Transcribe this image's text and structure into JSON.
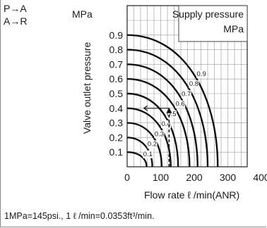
{
  "ports": [
    "P→A",
    "A→R"
  ],
  "footer_note": "1MPa=145psi., 1 ℓ /min=0.0353ft³/min.",
  "chart_data": {
    "type": "line",
    "xlabel": "Flow rate ℓ /min(ANR)",
    "ylabel": "Valve outlet pressure",
    "y_unit": "MPa",
    "legend_title": "Supply pressure",
    "legend_unit": "MPa",
    "xlim": [
      0,
      400
    ],
    "ylim": [
      0,
      1.0
    ],
    "x_ticks": [
      0,
      100,
      200,
      300,
      400
    ],
    "y_ticks": [
      0.1,
      0.2,
      0.3,
      0.4,
      0.5,
      0.6,
      0.7,
      0.8,
      0.9
    ],
    "grid": true,
    "legend_position": "top-right",
    "series": [
      {
        "name": "0.1",
        "flow_at_zero": 58
      },
      {
        "name": "0.2",
        "flow_at_zero": 75
      },
      {
        "name": "0.3",
        "flow_at_zero": 103
      },
      {
        "name": "0.4",
        "flow_at_zero": 130
      },
      {
        "name": "0.5",
        "flow_at_zero": 152
      },
      {
        "name": "0.6",
        "flow_at_zero": 186
      },
      {
        "name": "0.7",
        "flow_at_zero": 210
      },
      {
        "name": "0.8",
        "flow_at_zero": 240
      },
      {
        "name": "0.9",
        "flow_at_zero": 270
      }
    ],
    "annotations": [
      {
        "type": "dashed_line",
        "x": 125,
        "y_from": 0,
        "y_to": 0.4
      },
      {
        "type": "arrow",
        "from": [
          125,
          0.4
        ],
        "to": [
          50,
          0.4
        ]
      }
    ]
  }
}
